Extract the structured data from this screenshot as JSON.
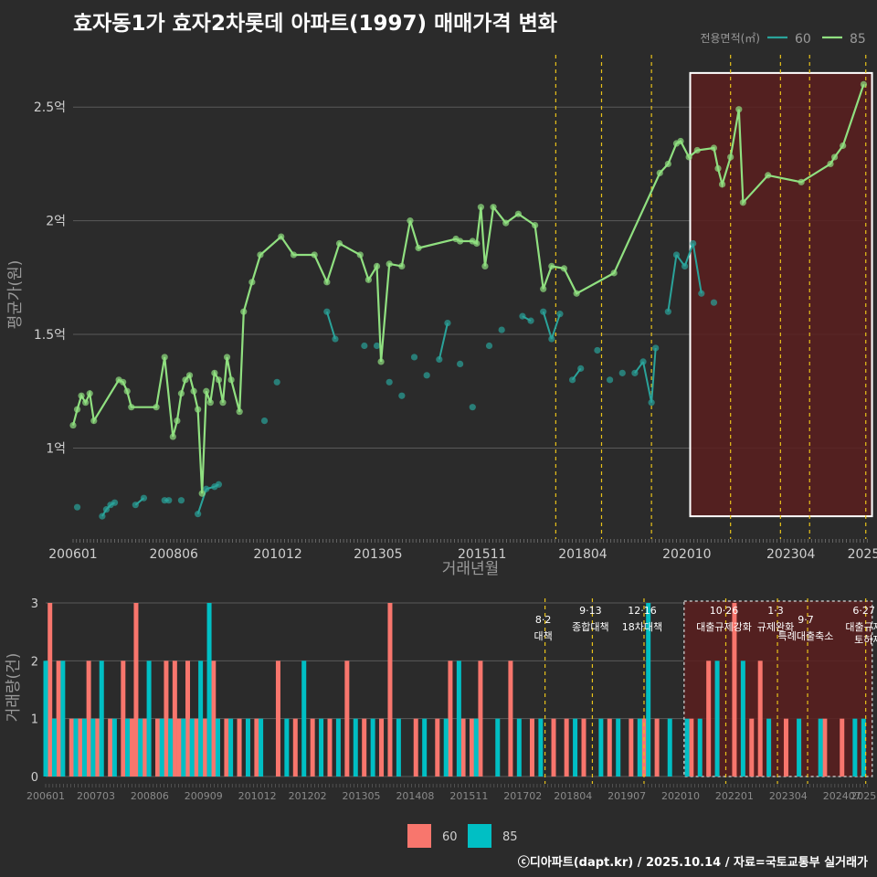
{
  "title": "효자동1가 효자2차롯데 아파트(1997) 매매가격 변화",
  "footer": "ⓒ디아파트(dapt.kr) / 2025.10.14 / 자료=국토교통부 실거래가",
  "colors": {
    "bg": "#2b2b2b",
    "grid": "#5a5a5a",
    "line60": "#2aa39a",
    "line85": "#90e080",
    "bar60": "#f8766d",
    "bar85": "#00bfc4",
    "policy_line": "#e8c21a",
    "highlight_fill": "#5a1f1f",
    "highlight_stroke": "#ffffff",
    "axis_text": "#cfcfcf",
    "bottom_axis_text": "#8a8a8a"
  },
  "chart_data": [
    {
      "type": "line",
      "title": "효자동1가 효자2차롯데 아파트(1997) 매매가격 변화",
      "xlabel": "거래년월",
      "ylabel": "평균가(원)",
      "x_tick_labels": [
        "200601",
        "200806",
        "201012",
        "201305",
        "201511",
        "201804",
        "202010",
        "202304",
        "2025"
      ],
      "x_tick_years": [
        2006.0,
        2008.42,
        2010.92,
        2013.33,
        2015.83,
        2018.25,
        2020.75,
        2023.25,
        2025.0
      ],
      "xlim": [
        2006.0,
        2025.1
      ],
      "ylim": [
        0.6,
        2.75
      ],
      "y_ticks": [
        1.0,
        1.5,
        2.0,
        2.5
      ],
      "y_tick_labels": [
        "1억",
        "1.5억",
        "2억",
        "2.5억"
      ],
      "legend_title": "전용면적(㎡)",
      "legend": [
        "60",
        "85"
      ],
      "policy_lines": [
        2017.6,
        2018.7,
        2019.9,
        2021.8,
        2023.0,
        2023.7,
        2025.05,
        2025.4
      ],
      "highlight": {
        "x": [
          2020.83,
          2025.2
        ],
        "y": [
          0.7,
          2.65
        ]
      },
      "series": [
        {
          "name": "85",
          "x": [
            2006.0,
            2006.1,
            2006.2,
            2006.3,
            2006.4,
            2006.5,
            2007.1,
            2007.2,
            2007.3,
            2007.4,
            2008.0,
            2008.2,
            2008.4,
            2008.5,
            2008.6,
            2008.7,
            2008.8,
            2008.9,
            2009.0,
            2009.1,
            2009.2,
            2009.3,
            2009.4,
            2009.5,
            2009.6,
            2009.7,
            2009.8,
            2010.0,
            2010.1,
            2010.3,
            2010.5,
            2011.0,
            2011.3,
            2011.8,
            2012.1,
            2012.4,
            2012.9,
            2013.1,
            2013.3,
            2013.4,
            2013.6,
            2013.9,
            2014.1,
            2014.3,
            2015.2,
            2015.3,
            2015.6,
            2015.7,
            2015.8,
            2015.9,
            2016.1,
            2016.4,
            2016.7,
            2017.1,
            2017.3,
            2017.5,
            2017.8,
            2018.1,
            2019.0,
            2020.1,
            2020.3,
            2020.5,
            2020.6,
            2020.8,
            2021.0,
            2021.4,
            2021.5,
            2021.6,
            2021.8,
            2022.0,
            2022.1,
            2022.7,
            2023.5,
            2024.2,
            2024.3,
            2024.5,
            2025.0
          ],
          "values": [
            1.1,
            1.17,
            1.23,
            1.2,
            1.24,
            1.12,
            1.3,
            1.29,
            1.25,
            1.18,
            1.18,
            1.4,
            1.05,
            1.12,
            1.24,
            1.3,
            1.32,
            1.25,
            1.17,
            0.8,
            1.25,
            1.2,
            1.33,
            1.3,
            1.2,
            1.4,
            1.3,
            1.16,
            1.6,
            1.73,
            1.85,
            1.93,
            1.85,
            1.85,
            1.73,
            1.9,
            1.85,
            1.74,
            1.8,
            1.38,
            1.81,
            1.8,
            2.0,
            1.88,
            1.92,
            1.91,
            1.91,
            1.9,
            2.06,
            1.8,
            2.06,
            1.99,
            2.03,
            1.98,
            1.7,
            1.8,
            1.79,
            1.68,
            1.77,
            2.21,
            2.25,
            2.34,
            2.35,
            2.28,
            2.31,
            2.32,
            2.23,
            2.16,
            2.28,
            2.49,
            2.08,
            2.2,
            2.17,
            2.25,
            2.28,
            2.33,
            2.6
          ]
        },
        {
          "name": "60",
          "x": [
            2006.1,
            2006.7,
            2006.8,
            2006.9,
            2007.0,
            2007.5,
            2007.7,
            2008.2,
            2008.3,
            2008.6,
            2009.0,
            2009.2,
            2009.4,
            2009.5,
            2010.6,
            2010.9,
            2012.1,
            2012.3,
            2013.0,
            2013.3,
            2013.6,
            2013.9,
            2014.2,
            2014.5,
            2014.8,
            2015.0,
            2015.3,
            2015.6,
            2016.0,
            2016.3,
            2016.8,
            2017.0,
            2017.3,
            2017.5,
            2017.7,
            2018.0,
            2018.2,
            2018.6,
            2018.9,
            2019.2,
            2019.5,
            2019.7,
            2019.9,
            2020.0,
            2020.3,
            2020.5,
            2020.7,
            2020.9,
            2021.1,
            2021.4
          ],
          "values": [
            0.74,
            0.7,
            0.73,
            0.75,
            0.76,
            0.75,
            0.78,
            0.77,
            0.77,
            0.77,
            0.71,
            0.82,
            0.83,
            0.84,
            1.12,
            1.29,
            1.6,
            1.48,
            1.45,
            1.45,
            1.29,
            1.23,
            1.4,
            1.32,
            1.39,
            1.55,
            1.37,
            1.18,
            1.45,
            1.52,
            1.58,
            1.56,
            1.6,
            1.48,
            1.59,
            1.3,
            1.35,
            1.43,
            1.3,
            1.33,
            1.33,
            1.38,
            1.2,
            1.44,
            1.6,
            1.85,
            1.8,
            1.9,
            1.68,
            1.64
          ]
        }
      ]
    },
    {
      "type": "bar",
      "ylabel": "거래량(건)",
      "x_tick_labels": [
        "200601",
        "200703",
        "200806",
        "200909",
        "201012",
        "201202",
        "201305",
        "201408",
        "201511",
        "201702",
        "201804",
        "201907",
        "202010",
        "202201",
        "202304",
        "202407",
        "2025"
      ],
      "xlim": [
        2006.0,
        2025.1
      ],
      "ylim": [
        0,
        3
      ],
      "y_ticks": [
        0,
        1,
        2,
        3
      ],
      "legend": [
        "60",
        "85"
      ],
      "policy_lines": [
        2017.6,
        2018.7,
        2019.9,
        2021.8,
        2023.0,
        2023.7,
        2025.05,
        2025.4
      ],
      "highlight": {
        "x": [
          2020.83,
          2025.2
        ]
      },
      "annotations": [
        {
          "x": 2017.6,
          "date": "8·2",
          "text": "대책",
          "row": 1
        },
        {
          "x": 2018.7,
          "date": "9·13",
          "text": "종합대책",
          "row": 0
        },
        {
          "x": 2019.9,
          "date": "12·16",
          "text": "18차대책",
          "row": 0
        },
        {
          "x": 2021.8,
          "date": "10·26",
          "text": "대출규제강화",
          "row": 0
        },
        {
          "x": 2023.0,
          "date": "1·3",
          "text": "규제완화",
          "row": 0
        },
        {
          "x": 2023.7,
          "date": "9·7",
          "text": "특례대출축소",
          "row": 1
        },
        {
          "x": 2025.05,
          "date": "6·27",
          "text": "대출규제",
          "row": 0
        },
        {
          "x": 2025.4,
          "date": "",
          "text": "토허제 해제",
          "row": 1
        }
      ],
      "series": [
        {
          "name": "60",
          "x": [
            2006.1,
            2006.3,
            2006.6,
            2006.8,
            2007.0,
            2007.2,
            2007.5,
            2007.8,
            2008.0,
            2008.1,
            2008.3,
            2008.6,
            2008.8,
            2009.0,
            2009.1,
            2009.3,
            2009.5,
            2009.7,
            2009.9,
            2010.2,
            2010.5,
            2010.9,
            2011.4,
            2011.8,
            2012.2,
            2012.6,
            2013.0,
            2013.4,
            2013.8,
            2014.0,
            2014.6,
            2015.1,
            2015.4,
            2015.7,
            2015.9,
            2016.1,
            2016.8,
            2017.3,
            2017.8,
            2018.1,
            2018.5,
            2019.1,
            2019.6,
            2019.9,
            2020.2,
            2021.0,
            2021.4,
            2022.0,
            2022.4,
            2022.6,
            2023.2,
            2024.1,
            2024.5
          ],
          "values": [
            3,
            2,
            1,
            1,
            2,
            1,
            1,
            2,
            1,
            3,
            1,
            1,
            2,
            2,
            1,
            2,
            1,
            1,
            2,
            1,
            1,
            1,
            2,
            1,
            1,
            1,
            2,
            1,
            1,
            3,
            1,
            1,
            2,
            1,
            1,
            2,
            2,
            1,
            1,
            1,
            1,
            1,
            1,
            1,
            1,
            1,
            2,
            3,
            1,
            2,
            1,
            1,
            1
          ]
        },
        {
          "name": "85",
          "x": [
            2006.0,
            2006.2,
            2006.4,
            2006.7,
            2006.9,
            2007.1,
            2007.3,
            2007.6,
            2007.9,
            2008.2,
            2008.4,
            2008.7,
            2008.9,
            2009.2,
            2009.4,
            2009.6,
            2009.8,
            2010.0,
            2010.3,
            2010.7,
            2011.0,
            2011.6,
            2012.0,
            2012.4,
            2012.8,
            2013.2,
            2013.6,
            2014.2,
            2014.8,
            2015.3,
            2015.6,
            2016.0,
            2016.5,
            2017.0,
            2017.5,
            2018.3,
            2018.9,
            2019.3,
            2019.8,
            2020.0,
            2020.5,
            2020.9,
            2021.2,
            2021.6,
            2022.2,
            2022.8,
            2023.5,
            2024.0,
            2024.8,
            2025.0
          ],
          "values": [
            2,
            1,
            2,
            1,
            1,
            1,
            2,
            1,
            1,
            1,
            2,
            1,
            1,
            1,
            1,
            2,
            3,
            1,
            1,
            1,
            1,
            1,
            2,
            1,
            1,
            1,
            1,
            1,
            1,
            1,
            2,
            1,
            1,
            1,
            1,
            1,
            1,
            1,
            1,
            3,
            1,
            1,
            1,
            2,
            2,
            1,
            1,
            1,
            1,
            1
          ]
        }
      ]
    }
  ]
}
